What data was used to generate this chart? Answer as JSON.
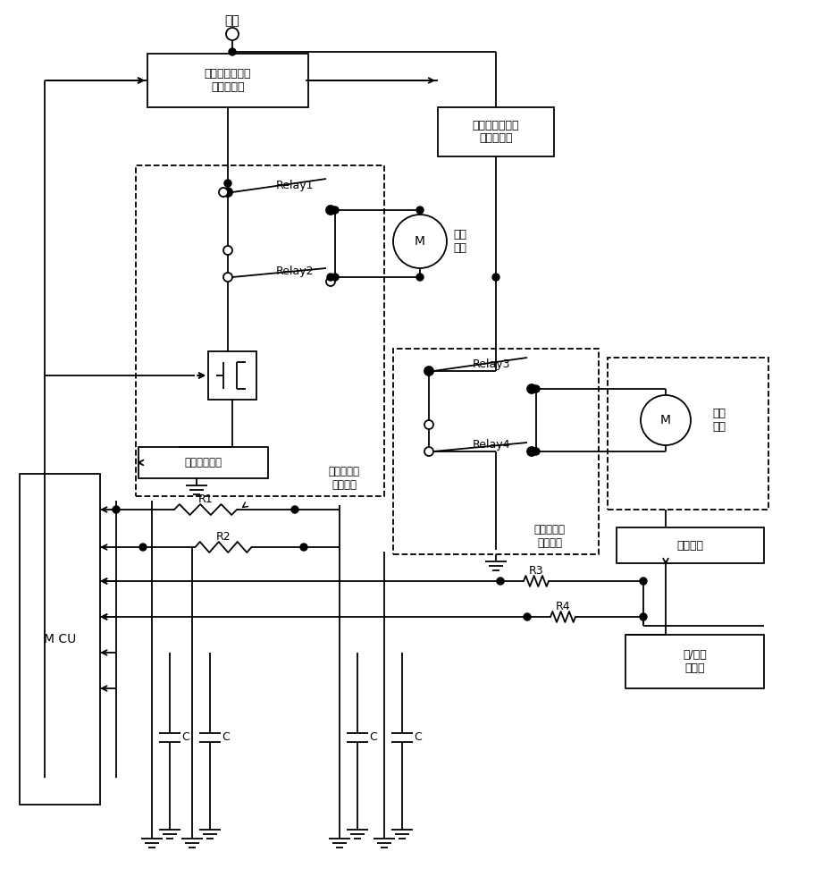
{
  "bg_color": "#ffffff",
  "line_color": "#000000",
  "fig_width": 9.3,
  "fig_height": 10.0,
  "dpi": 100,
  "labels": {
    "power": "电源",
    "sw1": "第一电源极性反\n接保护开关",
    "sw2": "第二电源极性反\n接保护开关",
    "relay1": "Relay1",
    "relay2": "Relay2",
    "relay3": "Relay3",
    "relay4": "Relay4",
    "motor_back": "背门\n电机",
    "motor_lock": "门锁\n电机",
    "current_detect": "电流检测电路",
    "back_circuit": "背门电机的\n控制回路",
    "lock_circuit": "门锁电机的\n控制回路",
    "lock_switch": "门锁开关",
    "R1": "R1",
    "R2": "R2",
    "R3": "R3",
    "R4": "R4",
    "C": "C",
    "MCU": "M CU",
    "high_low": "高/低电\n平检测"
  }
}
